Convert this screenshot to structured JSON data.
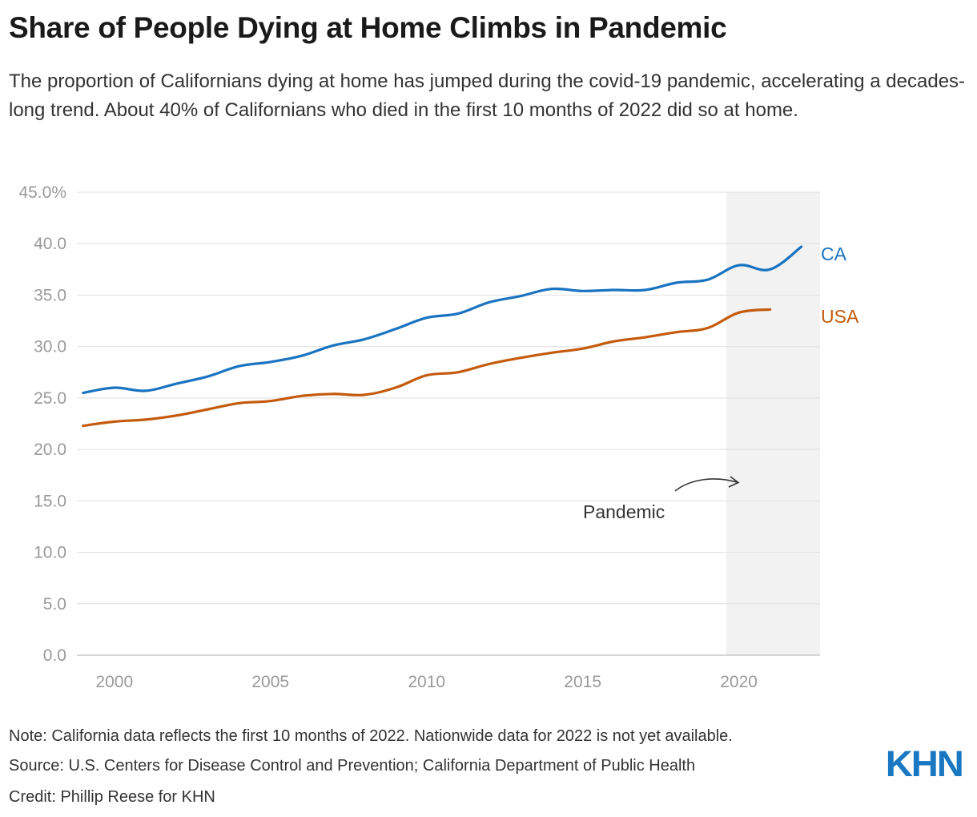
{
  "header": {
    "title": "Share of People Dying at Home Climbs in Pandemic",
    "subtitle": "The proportion of Californians dying at home has jumped during the covid-19 pandemic, accelerating a decades-long trend. About 40% of Californians who died in the first 10 months of 2022 did so at home."
  },
  "chart_data": {
    "type": "line",
    "x": [
      1999,
      2000,
      2001,
      2002,
      2003,
      2004,
      2005,
      2006,
      2007,
      2008,
      2009,
      2010,
      2011,
      2012,
      2013,
      2014,
      2015,
      2016,
      2017,
      2018,
      2019,
      2020,
      2021,
      2022
    ],
    "series": [
      {
        "name": "CA",
        "color": "#1a73c1",
        "values": [
          25.5,
          26.0,
          25.7,
          26.4,
          27.1,
          28.1,
          28.5,
          29.1,
          30.1,
          30.7,
          31.7,
          32.8,
          33.2,
          34.3,
          34.9,
          35.6,
          35.4,
          35.5,
          35.5,
          36.2,
          36.5,
          37.9,
          37.5,
          39.7
        ]
      },
      {
        "name": "USA",
        "color": "#c45a0c",
        "values": [
          22.3,
          22.7,
          22.9,
          23.3,
          23.9,
          24.5,
          24.7,
          25.2,
          25.4,
          25.3,
          26.0,
          27.2,
          27.5,
          28.3,
          28.9,
          29.4,
          29.8,
          30.5,
          30.9,
          31.4,
          31.8,
          33.3,
          33.6,
          null
        ]
      }
    ],
    "ylim": [
      0,
      45
    ],
    "yticks": [
      0,
      5,
      10,
      15,
      20,
      25,
      30,
      35,
      40,
      45
    ],
    "ytick_labels": [
      "0.0",
      "5.0",
      "10.0",
      "15.0",
      "20.0",
      "25.0",
      "30.0",
      "35.0",
      "40.0",
      "45.0%"
    ],
    "xlim": [
      1998.8,
      2022.6
    ],
    "xticks": [
      2000,
      2005,
      2010,
      2015,
      2020
    ],
    "xtick_labels": [
      "2000",
      "2005",
      "2010",
      "2015",
      "2020"
    ],
    "shaded_region": {
      "x": [
        2019.6,
        2022.6
      ],
      "color": "#f2f2f2"
    },
    "annotation": {
      "text": "Pandemic"
    },
    "grid": true,
    "legend": "direct labels at line ends"
  },
  "footer": {
    "note": "Note: California data reflects the first 10 months of 2022. Nationwide data for 2022 is not yet available.",
    "source": "Source: U.S. Centers for Disease Control and Prevention; California Department of Public Health",
    "credit": "Credit: Phillip Reese for KHN",
    "logo": "KHN"
  }
}
